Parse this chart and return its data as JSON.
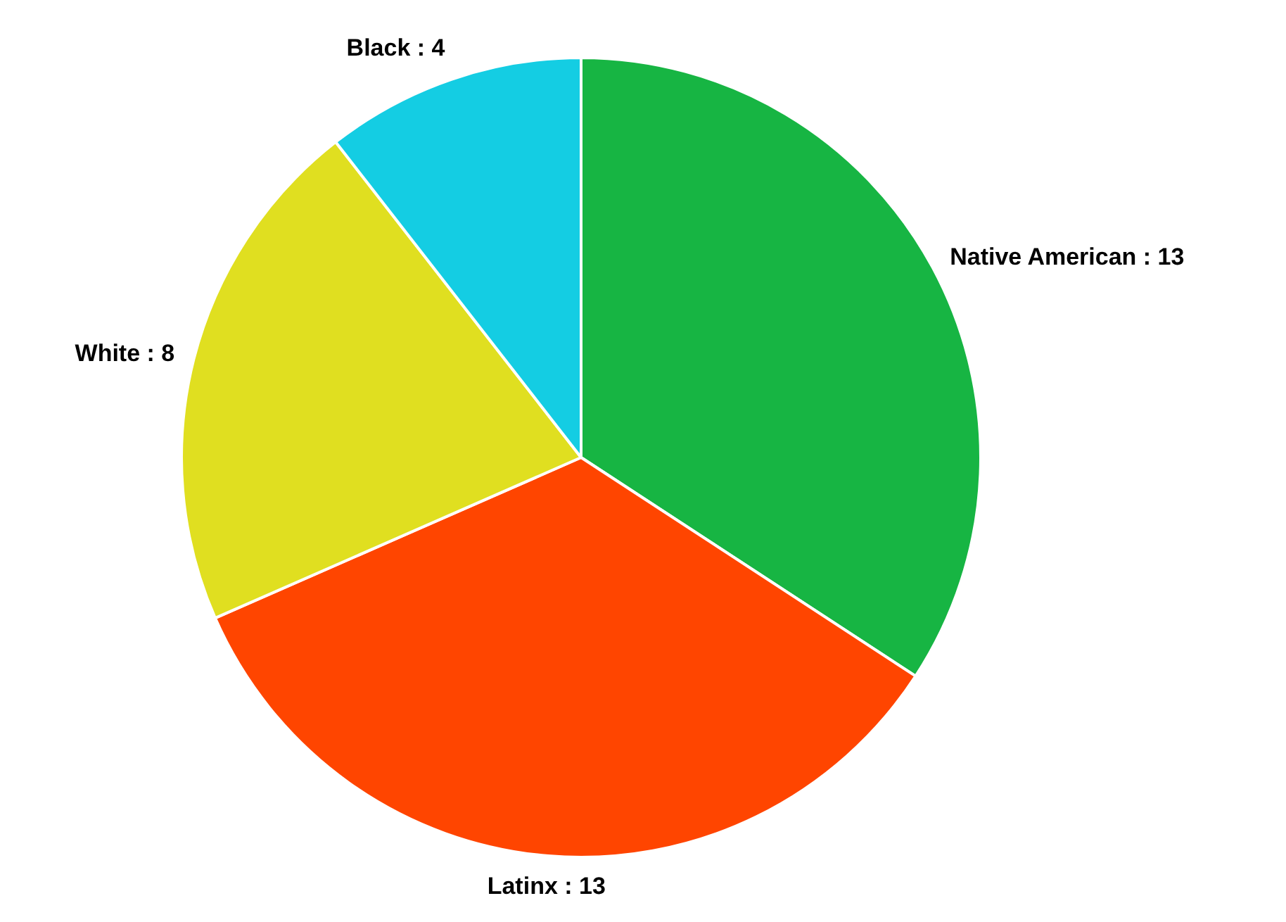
{
  "chart_data": {
    "type": "pie",
    "categories": [
      "Native American : 13",
      "Latinx : 13",
      "White : 8",
      "Black : 4"
    ],
    "values": [
      13,
      13,
      8,
      4
    ],
    "colors": [
      "#17b543",
      "#ff4500",
      "#e0df20",
      "#14cde3"
    ],
    "legend": false
  }
}
